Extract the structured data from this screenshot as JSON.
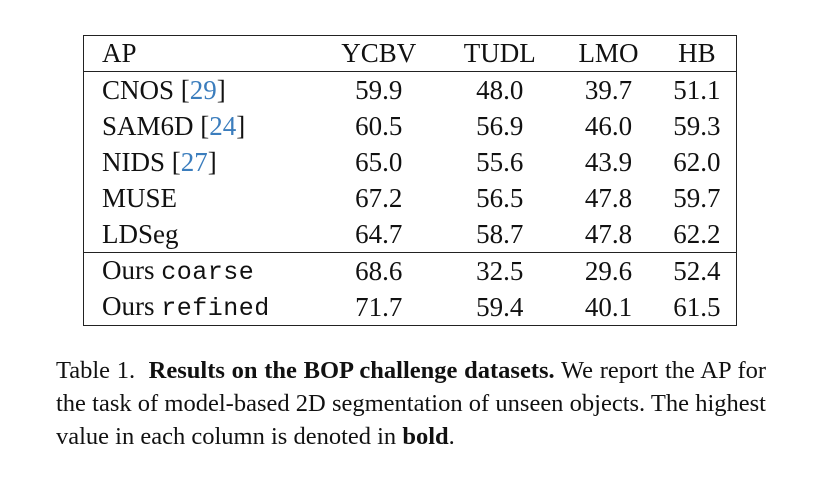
{
  "table": {
    "columns": [
      "AP",
      "YCBV",
      "TUDL",
      "LMO",
      "HB"
    ],
    "rows": [
      {
        "name": "CNOS",
        "cite": "29",
        "variant": "",
        "values": [
          "59.9",
          "48.0",
          "39.7",
          "51.1"
        ],
        "bold": [
          false,
          false,
          false,
          false
        ]
      },
      {
        "name": "SAM6D",
        "cite": "24",
        "variant": "",
        "values": [
          "60.5",
          "56.9",
          "46.0",
          "59.3"
        ],
        "bold": [
          false,
          false,
          false,
          false
        ]
      },
      {
        "name": "NIDS",
        "cite": "27",
        "variant": "",
        "values": [
          "65.0",
          "55.6",
          "43.9",
          "62.0"
        ],
        "bold": [
          false,
          false,
          false,
          false
        ]
      },
      {
        "name": "MUSE",
        "cite": "",
        "variant": "",
        "values": [
          "67.2",
          "56.5",
          "47.8",
          "59.7"
        ],
        "bold": [
          false,
          false,
          true,
          false
        ]
      },
      {
        "name": "LDSeg",
        "cite": "",
        "variant": "",
        "values": [
          "64.7",
          "58.7",
          "47.8",
          "62.2"
        ],
        "bold": [
          false,
          false,
          true,
          true
        ]
      },
      {
        "name": "Ours",
        "cite": "",
        "variant": "coarse",
        "values": [
          "68.6",
          "32.5",
          "29.6",
          "52.4"
        ],
        "bold": [
          false,
          false,
          false,
          false
        ]
      },
      {
        "name": "Ours",
        "cite": "",
        "variant": "refined",
        "values": [
          "71.7",
          "59.4",
          "40.1",
          "61.5"
        ],
        "bold": [
          true,
          true,
          false,
          false
        ]
      }
    ]
  },
  "caption": {
    "label": "Table 1.",
    "title": "Results on the BOP challenge datasets.",
    "text_before_bold": "We report the AP for the task of model-based 2D segmentation of unseen objects. The highest value in each column is denoted in",
    "bold_word": "bold",
    "end": "."
  },
  "colors": {
    "citation": "#3b7dbd",
    "text": "#111111",
    "rule": "#222222"
  }
}
